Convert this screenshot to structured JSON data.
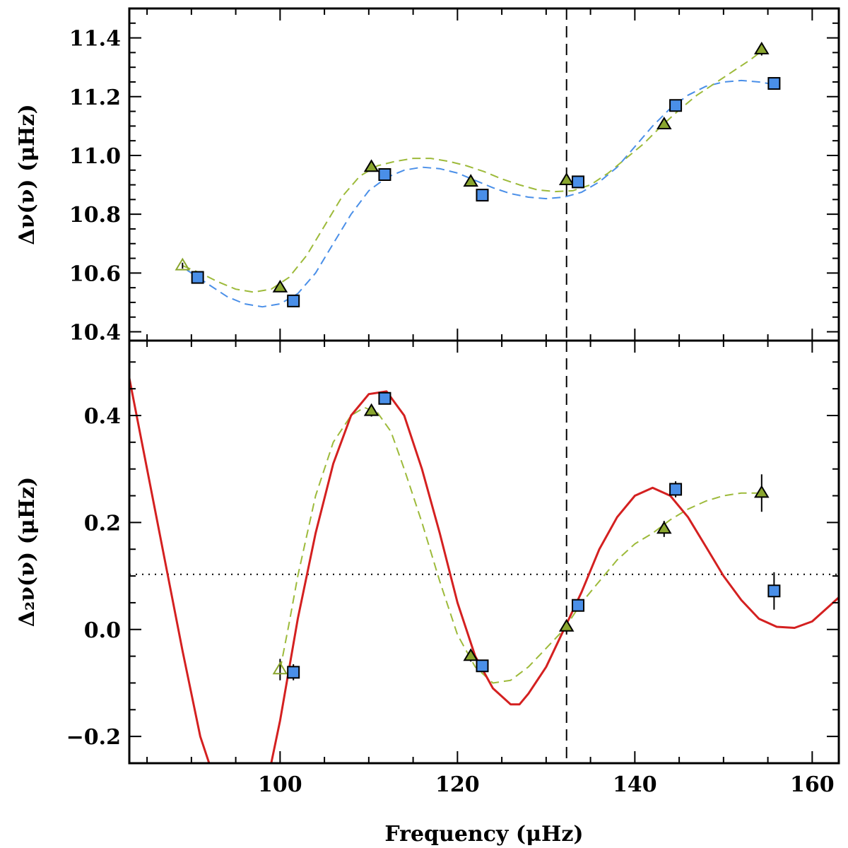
{
  "chart_data": [
    {
      "panel": "top",
      "type": "scatter",
      "ylabel": "Δν(ν) (μHz)",
      "xlim": [
        83,
        163
      ],
      "ylim": [
        10.37,
        11.5
      ],
      "xticks": [
        100,
        120,
        140,
        160
      ],
      "yticks": [
        10.4,
        10.6,
        10.8,
        11.0,
        11.2,
        11.4
      ],
      "ytick_labels": [
        "10.4",
        "10.6",
        "10.8",
        "11.0",
        "11.2",
        "11.4"
      ],
      "vline_x": 132.3,
      "colors": {
        "triangle": "#8aa62f",
        "square": "#4a8fe8",
        "fit_triangle": "#9dba3a",
        "fit_square": "#4a8fe8"
      },
      "series": [
        {
          "marker": "triangle",
          "points": [
            {
              "x": 89.0,
              "y": 10.625,
              "err": 0.01,
              "open": true
            },
            {
              "x": 100.0,
              "y": 10.55,
              "err": 0.008
            },
            {
              "x": 110.3,
              "y": 10.96,
              "err": 0.008
            },
            {
              "x": 121.5,
              "y": 10.91,
              "err": 0.008
            },
            {
              "x": 132.3,
              "y": 10.915,
              "err": 0.008
            },
            {
              "x": 143.3,
              "y": 11.105,
              "err": 0.01
            },
            {
              "x": 154.3,
              "y": 11.36,
              "err": 0.02
            }
          ]
        },
        {
          "marker": "square",
          "points": [
            {
              "x": 90.7,
              "y": 10.585,
              "err": 0.008
            },
            {
              "x": 101.5,
              "y": 10.505,
              "err": 0.008
            },
            {
              "x": 111.8,
              "y": 10.935,
              "err": 0.008
            },
            {
              "x": 122.8,
              "y": 10.865,
              "err": 0.008
            },
            {
              "x": 133.6,
              "y": 10.91,
              "err": 0.008
            },
            {
              "x": 144.6,
              "y": 11.17,
              "err": 0.01
            },
            {
              "x": 155.7,
              "y": 11.245,
              "err": 0.02
            }
          ]
        }
      ],
      "fits": [
        {
          "style": "dashed",
          "color_key": "fit_square",
          "points": [
            [
              89.5,
              10.61
            ],
            [
              92,
              10.56
            ],
            [
              94,
              10.52
            ],
            [
              96,
              10.495
            ],
            [
              98,
              10.485
            ],
            [
              100,
              10.495
            ],
            [
              102,
              10.53
            ],
            [
              104,
              10.6
            ],
            [
              106,
              10.7
            ],
            [
              108,
              10.8
            ],
            [
              110,
              10.88
            ],
            [
              112,
              10.925
            ],
            [
              114,
              10.95
            ],
            [
              116,
              10.96
            ],
            [
              118,
              10.955
            ],
            [
              120,
              10.94
            ],
            [
              122,
              10.915
            ],
            [
              124,
              10.89
            ],
            [
              126,
              10.87
            ],
            [
              128,
              10.858
            ],
            [
              130,
              10.853
            ],
            [
              132,
              10.858
            ],
            [
              134,
              10.875
            ],
            [
              136,
              10.91
            ],
            [
              138,
              10.96
            ],
            [
              140,
              11.03
            ],
            [
              142,
              11.1
            ],
            [
              144,
              11.16
            ],
            [
              146,
              11.205
            ],
            [
              148,
              11.235
            ],
            [
              150,
              11.25
            ],
            [
              152,
              11.255
            ],
            [
              154,
              11.25
            ],
            [
              156,
              11.24
            ]
          ]
        },
        {
          "style": "dashed",
          "color_key": "fit_triangle",
          "points": [
            [
              89,
              10.625
            ],
            [
              91,
              10.6
            ],
            [
              93,
              10.57
            ],
            [
              95,
              10.545
            ],
            [
              97,
              10.535
            ],
            [
              99,
              10.545
            ],
            [
              101,
              10.585
            ],
            [
              103,
              10.66
            ],
            [
              105,
              10.76
            ],
            [
              107,
              10.86
            ],
            [
              109,
              10.93
            ],
            [
              111,
              10.965
            ],
            [
              113,
              10.98
            ],
            [
              115,
              10.99
            ],
            [
              117,
              10.99
            ],
            [
              119,
              10.98
            ],
            [
              121,
              10.965
            ],
            [
              123,
              10.945
            ],
            [
              125,
              10.92
            ],
            [
              127,
              10.9
            ],
            [
              129,
              10.883
            ],
            [
              131,
              10.877
            ],
            [
              133,
              10.88
            ],
            [
              135,
              10.9
            ],
            [
              137,
              10.94
            ],
            [
              139,
              10.99
            ],
            [
              141,
              11.04
            ],
            [
              143,
              11.1
            ],
            [
              145,
              11.155
            ],
            [
              147,
              11.205
            ],
            [
              149,
              11.245
            ],
            [
              151,
              11.285
            ],
            [
              153,
              11.325
            ],
            [
              154.3,
              11.355
            ]
          ]
        }
      ]
    },
    {
      "panel": "bottom",
      "type": "scatter",
      "xlabel": "Frequency (μHz)",
      "ylabel": "Δ₂ν(ν) (μHz)",
      "xlim": [
        83,
        163
      ],
      "ylim": [
        -0.25,
        0.54
      ],
      "xticks": [
        100,
        120,
        140,
        160
      ],
      "xtick_labels": [
        "100",
        "120",
        "140",
        "160"
      ],
      "yticks": [
        -0.2,
        0.0,
        0.2,
        0.4
      ],
      "ytick_labels": [
        "−0.2",
        "0.0",
        "0.2",
        "0.4"
      ],
      "vline_x": 132.3,
      "hline_y": 0.103,
      "colors": {
        "triangle": "#8aa62f",
        "square": "#4a8fe8",
        "fit_triangle": "#9dba3a",
        "model": "#d42020"
      },
      "series": [
        {
          "marker": "triangle",
          "points": [
            {
              "x": 100.0,
              "y": -0.075,
              "err": 0.02,
              "open": true
            },
            {
              "x": 110.3,
              "y": 0.408,
              "err": 0.01
            },
            {
              "x": 121.5,
              "y": -0.05,
              "err": 0.01
            },
            {
              "x": 132.3,
              "y": 0.005,
              "err": 0.01
            },
            {
              "x": 143.3,
              "y": 0.188,
              "err": 0.015
            },
            {
              "x": 154.3,
              "y": 0.255,
              "err": 0.035
            }
          ]
        },
        {
          "marker": "square",
          "points": [
            {
              "x": 101.5,
              "y": -0.08,
              "err": 0.015
            },
            {
              "x": 111.8,
              "y": 0.432,
              "err": 0.01
            },
            {
              "x": 122.8,
              "y": -0.068,
              "err": 0.01
            },
            {
              "x": 133.6,
              "y": 0.045,
              "err": 0.01
            },
            {
              "x": 144.6,
              "y": 0.262,
              "err": 0.015
            },
            {
              "x": 155.7,
              "y": 0.072,
              "err": 0.035
            }
          ]
        }
      ],
      "fits": [
        {
          "style": "dashed",
          "color_key": "fit_triangle",
          "points": [
            [
              100,
              -0.075
            ],
            [
              101,
              0.01
            ],
            [
              102,
              0.1
            ],
            [
              104,
              0.25
            ],
            [
              106,
              0.35
            ],
            [
              108,
              0.4
            ],
            [
              109.5,
              0.415
            ],
            [
              111,
              0.405
            ],
            [
              112.5,
              0.37
            ],
            [
              114,
              0.3
            ],
            [
              116,
              0.2
            ],
            [
              118,
              0.09
            ],
            [
              120,
              -0.01
            ],
            [
              122,
              -0.07
            ],
            [
              124,
              -0.1
            ],
            [
              126,
              -0.095
            ],
            [
              128,
              -0.07
            ],
            [
              130,
              -0.035
            ],
            [
              132,
              0.0
            ],
            [
              134,
              0.05
            ],
            [
              136,
              0.09
            ],
            [
              138,
              0.13
            ],
            [
              140,
              0.16
            ],
            [
              142,
              0.18
            ],
            [
              144,
              0.205
            ],
            [
              146,
              0.225
            ],
            [
              148,
              0.24
            ],
            [
              150,
              0.25
            ],
            [
              152,
              0.255
            ],
            [
              154.3,
              0.255
            ]
          ]
        },
        {
          "style": "solid",
          "color_key": "model",
          "points": [
            [
              83,
              0.47
            ],
            [
              85,
              0.3
            ],
            [
              87,
              0.13
            ],
            [
              89,
              -0.04
            ],
            [
              91,
              -0.2
            ],
            [
              93,
              -0.3
            ],
            [
              95,
              -0.36
            ],
            [
              97,
              -0.35
            ],
            [
              99,
              -0.25
            ],
            [
              100,
              -0.17
            ],
            [
              102,
              0.02
            ],
            [
              104,
              0.18
            ],
            [
              106,
              0.31
            ],
            [
              108,
              0.4
            ],
            [
              110,
              0.44
            ],
            [
              112,
              0.445
            ],
            [
              114,
              0.4
            ],
            [
              116,
              0.3
            ],
            [
              118,
              0.18
            ],
            [
              120,
              0.05
            ],
            [
              122,
              -0.05
            ],
            [
              124,
              -0.11
            ],
            [
              126,
              -0.14
            ],
            [
              127,
              -0.14
            ],
            [
              128,
              -0.12
            ],
            [
              130,
              -0.07
            ],
            [
              132,
              0.0
            ],
            [
              134,
              0.07
            ],
            [
              136,
              0.15
            ],
            [
              138,
              0.21
            ],
            [
              140,
              0.25
            ],
            [
              142,
              0.265
            ],
            [
              144,
              0.25
            ],
            [
              146,
              0.21
            ],
            [
              148,
              0.155
            ],
            [
              150,
              0.1
            ],
            [
              152,
              0.055
            ],
            [
              154,
              0.02
            ],
            [
              156,
              0.005
            ],
            [
              158,
              0.003
            ],
            [
              160,
              0.015
            ],
            [
              162,
              0.045
            ],
            [
              163,
              0.06
            ]
          ]
        }
      ]
    }
  ]
}
